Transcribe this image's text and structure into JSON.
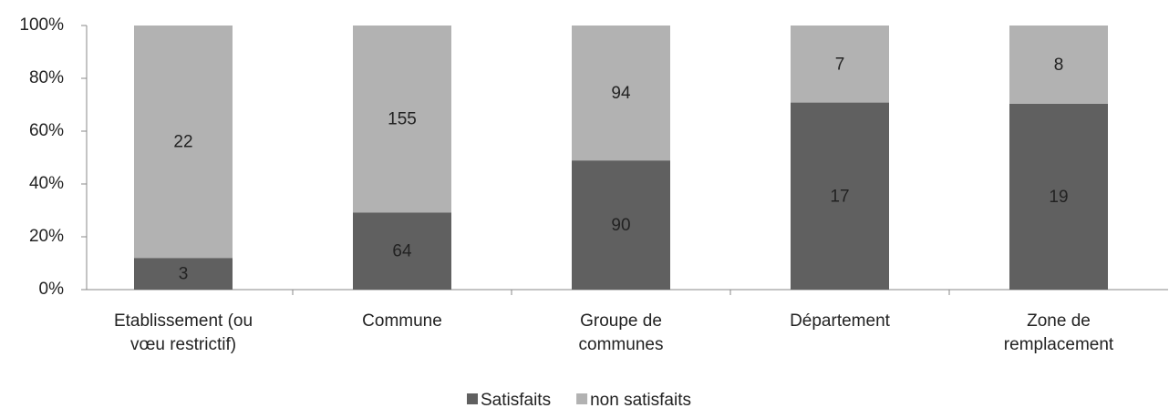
{
  "chart_data": {
    "type": "bar",
    "stacking": "percent",
    "categories": [
      "Etablissement (ou\nvœu restrictif)",
      "Commune",
      "Groupe de\ncommunes",
      "Département",
      "Zone de\nremplacement"
    ],
    "series": [
      {
        "name": "Satisfaits",
        "color": "#606060",
        "values": [
          3,
          64,
          90,
          17,
          19
        ]
      },
      {
        "name": "non satisfaits",
        "color": "#b2b2b2",
        "values": [
          22,
          155,
          94,
          7,
          8
        ]
      }
    ],
    "ylim": [
      0,
      100
    ],
    "yticks": [
      {
        "value": 0,
        "label": "0%"
      },
      {
        "value": 20,
        "label": "20%"
      },
      {
        "value": 40,
        "label": "40%"
      },
      {
        "value": 60,
        "label": "60%"
      },
      {
        "value": 80,
        "label": "80%"
      },
      {
        "value": 100,
        "label": "100%"
      }
    ],
    "legend": "bottom"
  }
}
